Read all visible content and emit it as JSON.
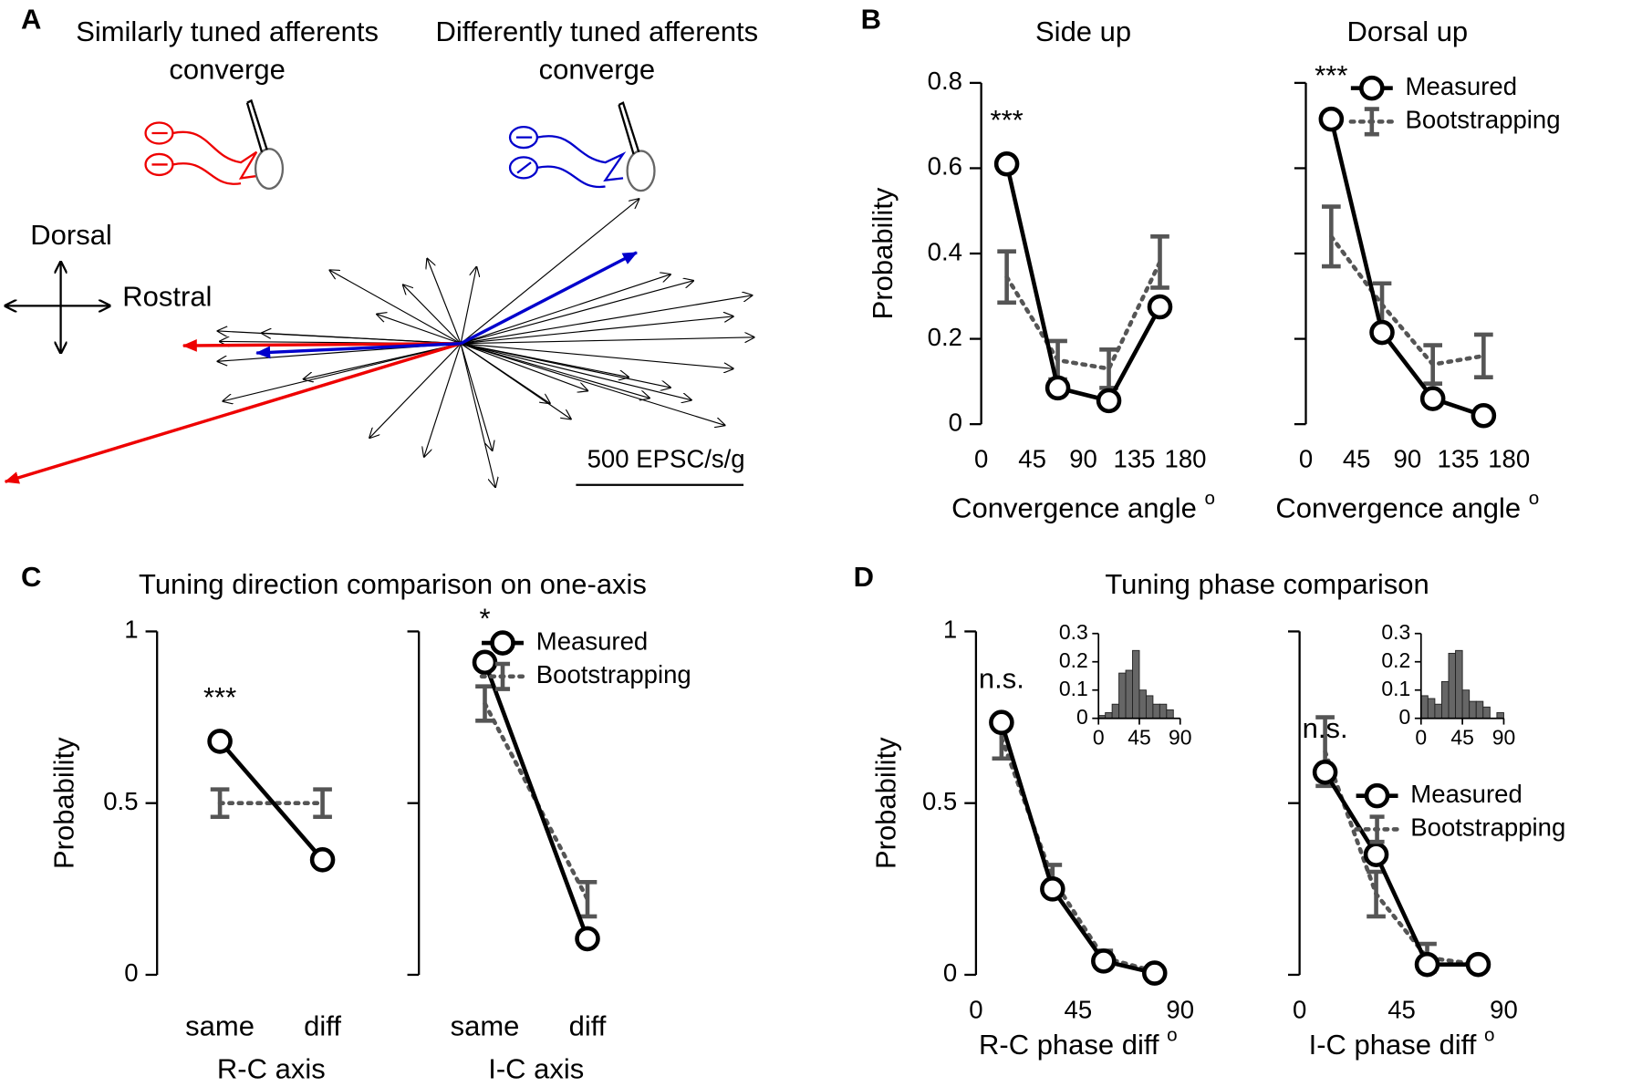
{
  "panel_labels": [
    "A",
    "B",
    "C",
    "D"
  ],
  "panel_a": {
    "left_title": [
      "Similarly tuned afferents",
      "converge"
    ],
    "right_title": [
      "Differently tuned afferents",
      "converge"
    ],
    "dorsal": "Dorsal",
    "rostral": "Rostral",
    "scale_bar": "500 EPSC/s/g"
  },
  "panel_titles": {
    "C": "Tuning direction comparison on one-axis",
    "D": "Tuning phase comparison"
  },
  "chart_data": [
    {
      "type": "line",
      "title": "Side up",
      "ylabel": "Probability",
      "xlabel": "Convergence angle",
      "xlabel_superscript": "o",
      "x": [
        22.5,
        67.5,
        112.5,
        157.5
      ],
      "xlim": [
        0,
        180
      ],
      "xticks": [
        0,
        45,
        90,
        135,
        180
      ],
      "ylim": [
        0,
        0.8
      ],
      "yticks": [
        0,
        0.2,
        0.4,
        0.6,
        0.8
      ],
      "annotation": "***",
      "series": [
        {
          "name": "Measured",
          "color": "#000000",
          "values": [
            0.61,
            0.085,
            0.055,
            0.275
          ]
        },
        {
          "name": "Bootstrapping",
          "color": "#555555",
          "values": [
            0.345,
            0.15,
            0.13,
            0.38
          ],
          "errors": [
            0.06,
            0.045,
            0.045,
            0.06
          ]
        }
      ]
    },
    {
      "type": "line",
      "title": "Dorsal up",
      "xlabel": "Convergence angle",
      "xlabel_superscript": "o",
      "ytick_labels": false,
      "legend": "upper right",
      "x": [
        22.5,
        67.5,
        112.5,
        157.5
      ],
      "xlim": [
        0,
        180
      ],
      "xticks": [
        0,
        45,
        90,
        135,
        180
      ],
      "ylim": [
        0,
        0.8
      ],
      "yticks": [
        0,
        0.2,
        0.4,
        0.6,
        0.8
      ],
      "annotation": "***",
      "series": [
        {
          "name": "Measured",
          "color": "#000000",
          "values": [
            0.715,
            0.215,
            0.06,
            0.02
          ]
        },
        {
          "name": "Bootstrapping",
          "color": "#555555",
          "values": [
            0.44,
            0.28,
            0.14,
            0.16
          ],
          "errors": [
            0.07,
            0.05,
            0.045,
            0.05
          ]
        }
      ]
    },
    {
      "type": "line",
      "ylabel": "Probability",
      "xlabel": "R-C axis",
      "categories": [
        "same",
        "diff"
      ],
      "ylim": [
        0,
        1
      ],
      "yticks": [
        0,
        0.5,
        1
      ],
      "annotation": "***",
      "series": [
        {
          "name": "Measured",
          "color": "#000000",
          "values": [
            0.68,
            0.335
          ]
        },
        {
          "name": "Bootstrapping",
          "color": "#555555",
          "values": [
            0.5,
            0.5
          ],
          "errors": [
            0.04,
            0.04
          ]
        }
      ]
    },
    {
      "type": "line",
      "xlabel": "I-C axis",
      "ytick_labels": false,
      "legend": "upper right",
      "categories": [
        "same",
        "diff"
      ],
      "ylim": [
        0,
        1
      ],
      "yticks": [
        0,
        0.5,
        1
      ],
      "annotation": "*",
      "series": [
        {
          "name": "Measured",
          "color": "#000000",
          "values": [
            0.91,
            0.105
          ]
        },
        {
          "name": "Bootstrapping",
          "color": "#555555",
          "values": [
            0.79,
            0.22
          ],
          "errors": [
            0.05,
            0.05
          ]
        }
      ]
    },
    {
      "type": "line",
      "ylabel": "Probability",
      "xlabel": "R-C phase diff",
      "xlabel_superscript": "o",
      "x": [
        11.25,
        33.75,
        56.25,
        78.75
      ],
      "xlim": [
        0,
        90
      ],
      "xticks": [
        0,
        45,
        90
      ],
      "ylim": [
        0,
        1
      ],
      "yticks": [
        0,
        0.5,
        1
      ],
      "annotation": "n.s.",
      "series": [
        {
          "name": "Measured",
          "color": "#000000",
          "values": [
            0.735,
            0.25,
            0.04,
            0.005
          ]
        },
        {
          "name": "Bootstrapping",
          "color": "#555555",
          "values": [
            0.69,
            0.28,
            0.05,
            0.01
          ],
          "errors": [
            0.06,
            0.04,
            0.02,
            0.005
          ]
        }
      ],
      "inset": {
        "type": "histogram",
        "color": "#666666",
        "bins": [
          0,
          7.5,
          15,
          22.5,
          30,
          37.5,
          45,
          52.5,
          60,
          67.5,
          75,
          82.5,
          90
        ],
        "values": [
          0.01,
          0.02,
          0.05,
          0.16,
          0.17,
          0.24,
          0.1,
          0.08,
          0.05,
          0.05,
          0.03,
          0.0
        ],
        "xlim": [
          0,
          90
        ],
        "xticks": [
          0,
          45,
          90
        ],
        "ylim": [
          0,
          0.3
        ],
        "yticks": [
          0,
          0.1,
          0.2,
          0.3
        ]
      }
    },
    {
      "type": "line",
      "xlabel": "I-C phase diff",
      "xlabel_superscript": "o",
      "ytick_labels": false,
      "legend": "upper right",
      "x": [
        11.25,
        33.75,
        56.25,
        78.75
      ],
      "xlim": [
        0,
        90
      ],
      "xticks": [
        0,
        45,
        90
      ],
      "ylim": [
        0,
        1
      ],
      "yticks": [
        0,
        0.5,
        1
      ],
      "annotation": "n.s.",
      "series": [
        {
          "name": "Measured",
          "color": "#000000",
          "values": [
            0.59,
            0.35,
            0.03,
            0.03
          ]
        },
        {
          "name": "Bootstrapping",
          "color": "#555555",
          "values": [
            0.65,
            0.235,
            0.05,
            0.03
          ],
          "errors": [
            0.1,
            0.065,
            0.04,
            0.005
          ]
        }
      ],
      "inset": {
        "type": "histogram",
        "color": "#666666",
        "bins": [
          0,
          7.5,
          15,
          22.5,
          30,
          37.5,
          45,
          52.5,
          60,
          67.5,
          75,
          82.5,
          90
        ],
        "values": [
          0.08,
          0.07,
          0.05,
          0.13,
          0.23,
          0.24,
          0.1,
          0.06,
          0.06,
          0.04,
          0.0,
          0.02
        ],
        "xlim": [
          0,
          90
        ],
        "xticks": [
          0,
          45,
          90
        ],
        "ylim": [
          0,
          0.3
        ],
        "yticks": [
          0,
          0.1,
          0.2,
          0.3
        ]
      }
    }
  ]
}
